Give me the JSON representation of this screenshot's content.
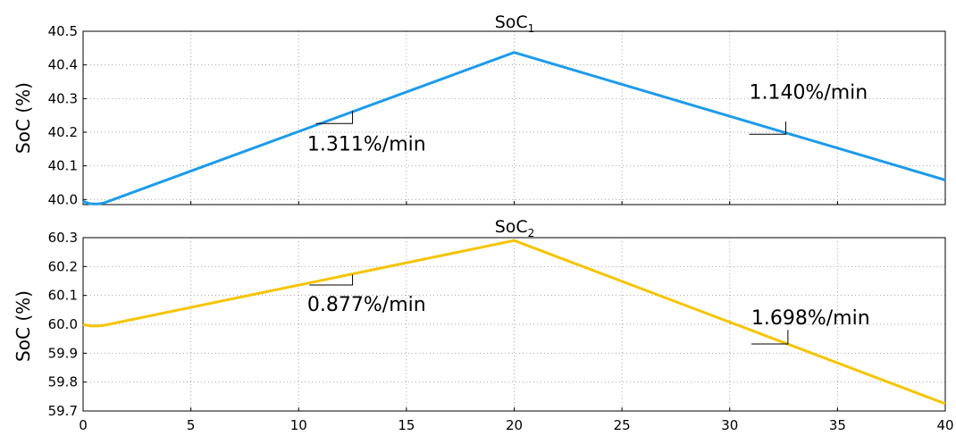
{
  "chart_data": [
    {
      "type": "line",
      "title_main": "SoC",
      "title_sub": "1",
      "xlabel": "",
      "ylabel": "SoC (%)",
      "xlim": [
        0,
        40
      ],
      "ylim": [
        39.985,
        40.5
      ],
      "x_ticks": [
        0,
        5,
        10,
        15,
        20,
        25,
        30,
        35,
        40
      ],
      "y_ticks": [
        40.0,
        40.1,
        40.2,
        40.3,
        40.4,
        40.5
      ],
      "y_tick_labels": [
        "40.0",
        "40.1",
        "40.2",
        "40.3",
        "40.4",
        "40.5"
      ],
      "show_x_tick_labels": false,
      "grid": true,
      "color": "#1e9be8",
      "series": [
        {
          "x": [
            0,
            0.15,
            0.3,
            0.5,
            0.7,
            0.9,
            1.1,
            1.4,
            20,
            40
          ],
          "y": [
            39.995,
            39.991,
            39.988,
            39.987,
            39.987,
            39.989,
            39.993,
            40.0,
            40.437,
            40.058
          ]
        }
      ],
      "annotations": [
        {
          "text": "1.311%/min",
          "x0": 10.8,
          "x1": 12.5,
          "y0": 40.226,
          "y1": 40.263,
          "tx": 10.4,
          "ty": 40.145
        },
        {
          "text": "1.140%/min",
          "x0": 30.9,
          "x1": 32.6,
          "y0": 40.194,
          "y1": 40.232,
          "tx": 30.9,
          "ty": 40.3
        }
      ]
    },
    {
      "type": "line",
      "title_main": "SoC",
      "title_sub": "2",
      "xlabel": "",
      "ylabel": "SoC (%)",
      "xlim": [
        0,
        40
      ],
      "ylim": [
        59.7,
        60.3
      ],
      "x_ticks": [
        0,
        5,
        10,
        15,
        20,
        25,
        30,
        35,
        40
      ],
      "x_tick_labels": [
        "0",
        "5",
        "10",
        "15",
        "20",
        "25",
        "30",
        "35",
        "40"
      ],
      "y_ticks": [
        59.7,
        59.8,
        59.9,
        60.0,
        60.1,
        60.2,
        60.3
      ],
      "y_tick_labels": [
        "59.7",
        "59.8",
        "59.9",
        "60.0",
        "60.1",
        "60.2",
        "60.3"
      ],
      "show_x_tick_labels": true,
      "grid": true,
      "color": "#f5c400",
      "series": [
        {
          "x": [
            0,
            0.2,
            0.4,
            0.6,
            0.8,
            1.0,
            1.2,
            20,
            40
          ],
          "y": [
            60.0,
            59.996,
            59.994,
            59.994,
            59.995,
            59.997,
            60.0,
            60.29,
            59.725
          ]
        }
      ],
      "annotations": [
        {
          "text": "0.877%/min",
          "x0": 10.5,
          "x1": 12.5,
          "y0": 60.136,
          "y1": 60.172,
          "tx": 10.4,
          "ty": 60.046
        },
        {
          "text": "1.698%/min",
          "x0": 31.0,
          "x1": 32.7,
          "y0": 59.932,
          "y1": 59.981,
          "tx": 31.0,
          "ty": 60.0
        }
      ]
    }
  ]
}
